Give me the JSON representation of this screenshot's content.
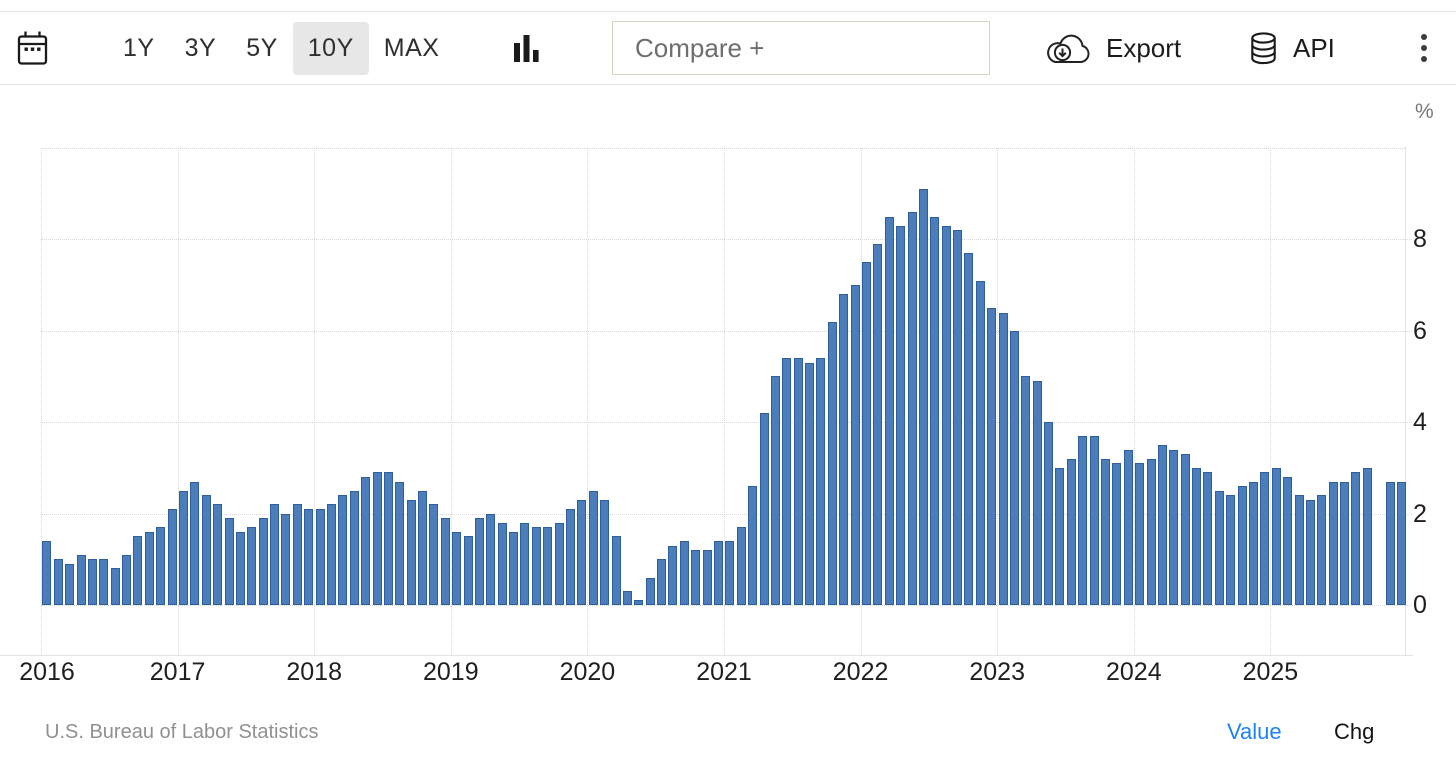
{
  "toolbar": {
    "ranges": [
      "1Y",
      "3Y",
      "5Y",
      "10Y",
      "MAX"
    ],
    "selected_range": "10Y",
    "compare_placeholder": "Compare +",
    "export_label": "Export",
    "api_label": "API"
  },
  "chart_data": {
    "type": "bar",
    "unit": "%",
    "frequency": "monthly",
    "start_month": "2016-01",
    "end_month": "2025-12",
    "missing_months": [
      "2025-10"
    ],
    "x_tick_labels": [
      "2016",
      "2017",
      "2018",
      "2019",
      "2020",
      "2021",
      "2022",
      "2023",
      "2024",
      "2025"
    ],
    "y_tick_labels": [
      "0",
      "2",
      "4",
      "6",
      "8"
    ],
    "y_tick_values": [
      0,
      2,
      4,
      6,
      8
    ],
    "y_gridline_values": [
      0,
      2,
      4,
      6,
      8,
      10
    ],
    "ylim": [
      -1.1,
      10.1
    ],
    "grid": true,
    "bar_color": "#4a7db9",
    "bar_border_color": "#2e5f9c",
    "values": [
      1.4,
      1.0,
      0.9,
      1.1,
      1.0,
      1.0,
      0.8,
      1.1,
      1.5,
      1.6,
      1.7,
      2.1,
      2.5,
      2.7,
      2.4,
      2.2,
      1.9,
      1.6,
      1.7,
      1.9,
      2.2,
      2.0,
      2.2,
      2.1,
      2.1,
      2.2,
      2.4,
      2.5,
      2.8,
      2.9,
      2.9,
      2.7,
      2.3,
      2.5,
      2.2,
      1.9,
      1.6,
      1.5,
      1.9,
      2.0,
      1.8,
      1.6,
      1.8,
      1.7,
      1.7,
      1.8,
      2.1,
      2.3,
      2.5,
      2.3,
      1.5,
      0.3,
      0.1,
      0.6,
      1.0,
      1.3,
      1.4,
      1.2,
      1.2,
      1.4,
      1.4,
      1.7,
      2.6,
      4.2,
      5.0,
      5.4,
      5.4,
      5.3,
      5.4,
      6.2,
      6.8,
      7.0,
      7.5,
      7.9,
      8.5,
      8.3,
      8.6,
      9.1,
      8.5,
      8.3,
      8.2,
      7.7,
      7.1,
      6.5,
      6.4,
      6.0,
      5.0,
      4.9,
      4.0,
      3.0,
      3.2,
      3.7,
      3.7,
      3.2,
      3.1,
      3.4,
      3.1,
      3.2,
      3.5,
      3.4,
      3.3,
      3.0,
      2.9,
      2.5,
      2.4,
      2.6,
      2.7,
      2.9,
      3.0,
      2.8,
      2.4,
      2.3,
      2.4,
      2.7,
      2.7,
      2.9,
      3.0,
      null,
      2.7,
      2.7
    ]
  },
  "footer": {
    "source": "U.S. Bureau of Labor Statistics",
    "mode_value": "Value",
    "mode_chg": "Chg",
    "active_mode": "Value",
    "active_color": "#1d83f2"
  }
}
